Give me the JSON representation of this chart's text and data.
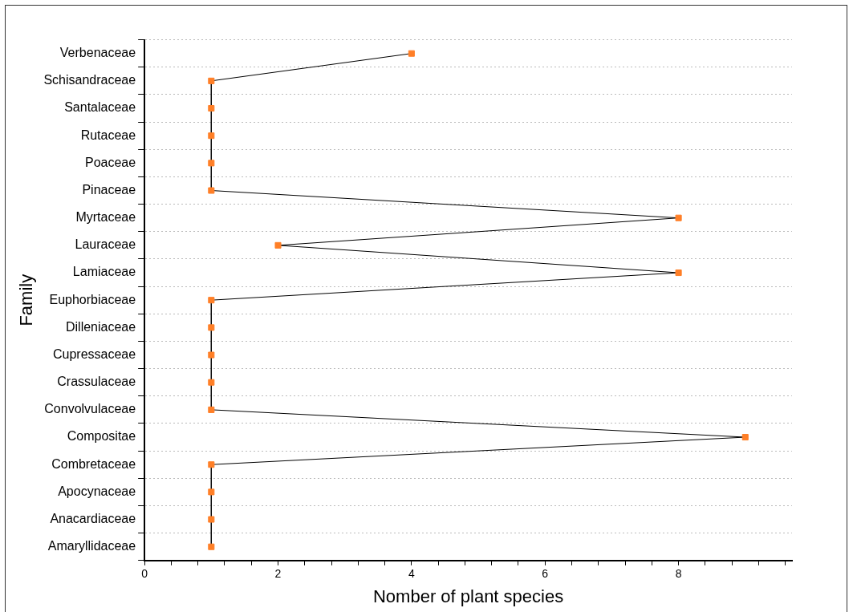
{
  "chart_data": {
    "type": "line",
    "orientation": "horizontal",
    "xlabel": "Nomber of plant species",
    "ylabel": "Family",
    "categories": [
      "Verbenaceae",
      "Schisandraceae",
      "Santalaceae",
      "Rutaceae",
      "Poaceae",
      "Pinaceae",
      "Myrtaceae",
      "Lauraceae",
      "Lamiaceae",
      "Euphorbiaceae",
      "Dilleniaceae",
      "Cupressaceae",
      "Crassulaceae",
      "Convolvulaceae",
      "Compositae",
      "Combretaceae",
      "Apocynaceae",
      "Anacardiaceae",
      "Amaryllidaceae"
    ],
    "series": [
      {
        "color": "#ff7f27",
        "values": [
          4,
          1,
          1,
          1,
          1,
          1,
          8,
          2,
          8,
          1,
          1,
          1,
          1,
          1,
          9,
          1,
          1,
          1,
          1
        ]
      }
    ],
    "xlim": [
      0,
      9.7
    ],
    "xticks": [
      0,
      {
        "value": 0.4,
        "label": null
      },
      {
        "value": 0.8,
        "label": null
      },
      {
        "value": 1.2,
        "label": null
      },
      {
        "value": 1.6,
        "label": null
      },
      2,
      {
        "value": 2.4,
        "label": null
      },
      {
        "value": 2.8,
        "label": null
      },
      {
        "value": 3.2,
        "label": null
      },
      {
        "value": 3.6,
        "label": null
      },
      4,
      {
        "value": 4.4,
        "label": null
      },
      {
        "value": 4.8,
        "label": null
      },
      {
        "value": 5.2,
        "label": null
      },
      {
        "value": 5.6,
        "label": null
      },
      6,
      {
        "value": 6.4,
        "label": null
      },
      {
        "value": 6.8,
        "label": null
      },
      {
        "value": 7.2,
        "label": null
      },
      {
        "value": 7.6,
        "label": null
      },
      8,
      {
        "value": 8.4,
        "label": null
      },
      {
        "value": 8.8,
        "label": null
      },
      {
        "value": 9.2,
        "label": null
      },
      {
        "value": 9.6,
        "label": null
      }
    ],
    "grid": "y",
    "legend": false,
    "marker": "square",
    "line_style": "solid"
  }
}
